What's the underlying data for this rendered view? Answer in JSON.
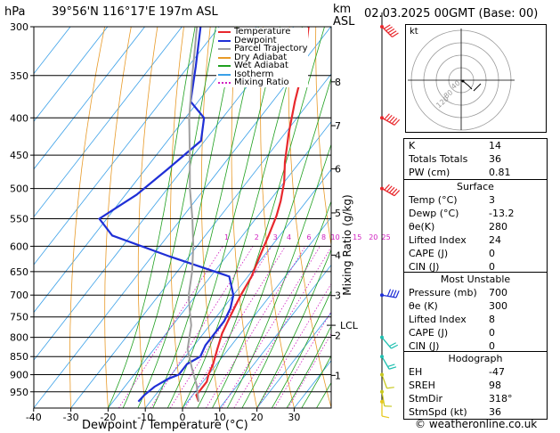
{
  "header": {
    "location": "39°56'N  116°17'E  197m  ASL",
    "datetime": "02.03.2025  00GMT  (Base: 00)",
    "hpa_label": "hPa",
    "km_label": "km",
    "asl_label": "ASL",
    "footer": "© weatheronline.co.uk"
  },
  "legend": [
    {
      "label": "Temperature",
      "color": "#e8282d",
      "style": "solid"
    },
    {
      "label": "Dewpoint",
      "color": "#1f2fd6",
      "style": "solid"
    },
    {
      "label": "Parcel Trajectory",
      "color": "#a0a0a0",
      "style": "solid"
    },
    {
      "label": "Dry Adiabat",
      "color": "#e89a28",
      "style": "solid"
    },
    {
      "label": "Wet Adiabat",
      "color": "#1fa01f",
      "style": "solid"
    },
    {
      "label": "Isotherm",
      "color": "#3aa0e8",
      "style": "solid"
    },
    {
      "label": "Mixing Ratio",
      "color": "#d020c0",
      "style": "dotted"
    }
  ],
  "chart_data": {
    "type": "line",
    "xlabel": "Dewpoint / Temperature (°C)",
    "ylabel_right": "Mixing Ratio (g/kg)",
    "x_ticks": [
      -40,
      -30,
      -20,
      -10,
      0,
      10,
      20,
      30
    ],
    "p_ticks": [
      300,
      350,
      400,
      450,
      500,
      550,
      600,
      650,
      700,
      750,
      800,
      850,
      900,
      950
    ],
    "xlim": [
      -40,
      40
    ],
    "plim": [
      300,
      1000
    ],
    "km_ticks": [
      {
        "label": "8",
        "p": 357
      },
      {
        "label": "7",
        "p": 410
      },
      {
        "label": "6",
        "p": 470
      },
      {
        "label": "5",
        "p": 540
      },
      {
        "label": "4",
        "p": 617
      },
      {
        "label": "3",
        "p": 701
      },
      {
        "label": "2",
        "p": 795
      },
      {
        "label": "1",
        "p": 902
      }
    ],
    "lcl": {
      "label": "LCL",
      "p": 770
    },
    "mixing_ratio_labels": [
      "1",
      "2",
      "3",
      "4",
      "6",
      "8",
      "10",
      "15",
      "20",
      "25"
    ],
    "mixing_ratio_label_p": 589,
    "mixing_ratio_values": [
      1,
      2,
      3,
      4,
      6,
      8,
      10,
      15,
      20,
      25
    ],
    "series": [
      {
        "name": "Temperature",
        "color": "#e8282d",
        "points": [
          [
            3,
            980
          ],
          [
            1,
            960
          ],
          [
            1,
            950
          ],
          [
            1,
            920
          ],
          [
            0,
            900
          ],
          [
            -1,
            870
          ],
          [
            -3,
            830
          ],
          [
            -5,
            790
          ],
          [
            -6,
            760
          ],
          [
            -7,
            730
          ],
          [
            -8,
            700
          ],
          [
            -9,
            660
          ],
          [
            -11,
            620
          ],
          [
            -13,
            580
          ],
          [
            -15,
            545
          ],
          [
            -17,
            520
          ],
          [
            -20,
            490
          ],
          [
            -24,
            460
          ],
          [
            -29,
            420
          ],
          [
            -34,
            380
          ],
          [
            -39,
            340
          ],
          [
            -46,
            300
          ]
        ]
      },
      {
        "name": "Dewpoint",
        "color": "#1f2fd6",
        "points": [
          [
            -13.2,
            980
          ],
          [
            -13,
            960
          ],
          [
            -12,
            935
          ],
          [
            -10,
            912
          ],
          [
            -8,
            900
          ],
          [
            -8,
            870
          ],
          [
            -6,
            850
          ],
          [
            -7,
            820
          ],
          [
            -7,
            790
          ],
          [
            -7,
            760
          ],
          [
            -8,
            730
          ],
          [
            -10,
            700
          ],
          [
            -15,
            660
          ],
          [
            -35,
            620
          ],
          [
            -55,
            580
          ],
          [
            -62,
            550
          ],
          [
            -57,
            510
          ],
          [
            -54,
            470
          ],
          [
            -51,
            430
          ],
          [
            -55,
            400
          ],
          [
            -62,
            380
          ],
          [
            -68,
            340
          ],
          [
            -75,
            300
          ]
        ]
      },
      {
        "name": "Parcel Trajectory",
        "color": "#a0a0a0",
        "points": [
          [
            3,
            980
          ],
          [
            -1,
            930
          ],
          [
            -6,
            880
          ],
          [
            -11,
            830
          ],
          [
            -15,
            770
          ],
          [
            -18,
            740
          ],
          [
            -22,
            700
          ],
          [
            -26,
            650
          ],
          [
            -31,
            600
          ],
          [
            -37,
            550
          ],
          [
            -44,
            500
          ],
          [
            -51,
            450
          ],
          [
            -59,
            400
          ],
          [
            -67,
            350
          ],
          [
            -76,
            300
          ]
        ]
      }
    ]
  },
  "hodograph": {
    "label": "kt",
    "ring_labels": [
      "40",
      "80",
      "120"
    ]
  },
  "wind_barbs": [
    {
      "p": 300,
      "dir": 315,
      "speed": 60,
      "color": "#e8282d"
    },
    {
      "p": 400,
      "dir": 300,
      "speed": 50,
      "color": "#e8282d"
    },
    {
      "p": 500,
      "dir": 300,
      "speed": 50,
      "color": "#e8282d"
    },
    {
      "p": 700,
      "dir": 280,
      "speed": 35,
      "color": "#1f2fd6"
    },
    {
      "p": 800,
      "dir": 320,
      "speed": 20,
      "color": "#1fc0b0"
    },
    {
      "p": 850,
      "dir": 330,
      "speed": 15,
      "color": "#1fc0b0"
    },
    {
      "p": 900,
      "dir": 340,
      "speed": 10,
      "color": "#c8c81f"
    },
    {
      "p": 950,
      "dir": 350,
      "speed": 10,
      "color": "#c8c81f"
    },
    {
      "p": 980,
      "dir": 0,
      "speed": 5,
      "color": "#e8c81f"
    }
  ],
  "indices": {
    "rows": [
      {
        "k": "K",
        "v": "14"
      },
      {
        "k": "Totals Totals",
        "v": "36"
      },
      {
        "k": "PW (cm)",
        "v": "0.81"
      }
    ],
    "surface": {
      "title": "Surface",
      "rows": [
        {
          "k": "Temp (°C)",
          "v": "3"
        },
        {
          "k": "Dewp (°C)",
          "v": "-13.2"
        },
        {
          "k": "θe(K)",
          "v": "280"
        },
        {
          "k": "Lifted Index",
          "v": "24"
        },
        {
          "k": "CAPE (J)",
          "v": "0"
        },
        {
          "k": "CIN (J)",
          "v": "0"
        }
      ]
    },
    "most_unstable": {
      "title": "Most Unstable",
      "rows": [
        {
          "k": "Pressure (mb)",
          "v": "700"
        },
        {
          "k": "θe (K)",
          "v": "300"
        },
        {
          "k": "Lifted Index",
          "v": "8"
        },
        {
          "k": "CAPE (J)",
          "v": "0"
        },
        {
          "k": "CIN (J)",
          "v": "0"
        }
      ]
    },
    "hodograph_stats": {
      "title": "Hodograph",
      "rows": [
        {
          "k": "EH",
          "v": "-47"
        },
        {
          "k": "SREH",
          "v": "98"
        },
        {
          "k": "StmDir",
          "v": "318°"
        },
        {
          "k": "StmSpd (kt)",
          "v": "36"
        }
      ]
    }
  }
}
